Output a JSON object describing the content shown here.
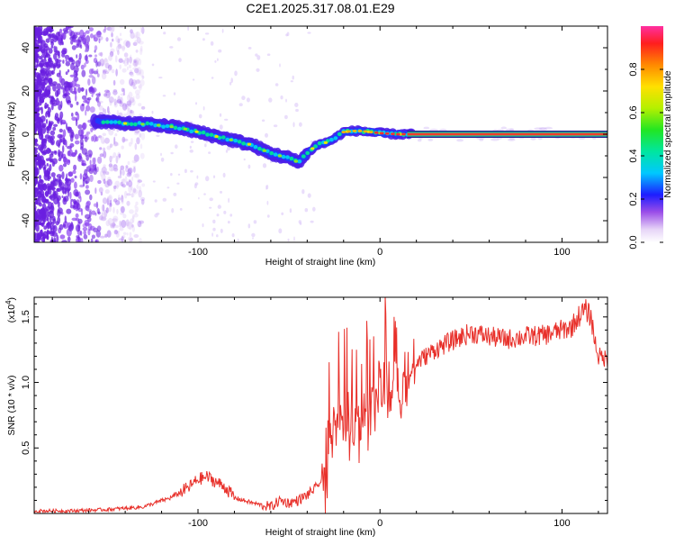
{
  "title": "C2E1.2025.317.08.01.E29",
  "chart_data": [
    {
      "type": "heatmap",
      "xlabel": "Height of straight line (km)",
      "ylabel": "Frequency (Hz)",
      "xlim": [
        -190,
        125
      ],
      "ylim": [
        -50,
        50
      ],
      "xticks": [
        -100,
        0,
        100
      ],
      "yticks": [
        -40,
        -20,
        0,
        20,
        40
      ],
      "ridge": {
        "x": [
          -155,
          -140,
          -125,
          -110,
          -100,
          -90,
          -80,
          -70,
          -60,
          -50,
          -45,
          -40,
          -35,
          -30,
          -25,
          -20,
          -15,
          -10,
          -5,
          0,
          10,
          20,
          125
        ],
        "y": [
          6,
          5,
          4.5,
          3,
          1,
          -1,
          -3,
          -5,
          -9,
          -11,
          -13,
          -9,
          -5,
          -4,
          -2,
          1,
          1.5,
          1.5,
          1,
          0.5,
          0,
          0,
          0
        ]
      },
      "colorbar": {
        "label": "Normalized spectral amplitude",
        "range": [
          0.0,
          1.0
        ],
        "ticks": [
          0.0,
          0.2,
          0.4,
          0.6,
          0.8
        ]
      }
    },
    {
      "type": "line",
      "xlabel": "Height of straight line (km)",
      "ylabel": "SNR (10 * v/v)",
      "scale_label": "(x10",
      "scale_exp": "4",
      "scale_close": ")",
      "xlim": [
        -190,
        125
      ],
      "ylim": [
        0,
        1.65
      ],
      "xticks": [
        -100,
        0,
        100
      ],
      "yticks": [
        0.5,
        1.0,
        1.5
      ],
      "series": [
        {
          "name": "SNR",
          "color": "#e8302a",
          "x": [
            -190,
            -170,
            -150,
            -130,
            -115,
            -105,
            -100,
            -95,
            -90,
            -85,
            -80,
            -70,
            -60,
            -55,
            -50,
            -45,
            -40,
            -35,
            -30,
            -28,
            -26,
            -24,
            -22,
            -20,
            -15,
            -10,
            -5,
            0,
            5,
            10,
            15,
            20,
            30,
            40,
            50,
            60,
            70,
            80,
            90,
            100,
            105,
            108,
            110,
            113,
            116,
            118,
            120,
            125
          ],
          "y": [
            0.02,
            0.02,
            0.03,
            0.05,
            0.12,
            0.2,
            0.26,
            0.28,
            0.24,
            0.2,
            0.12,
            0.08,
            0.05,
            0.1,
            0.08,
            0.1,
            0.14,
            0.2,
            0.28,
            0.55,
            0.7,
            0.75,
            0.8,
            0.72,
            0.6,
            0.7,
            0.8,
            0.95,
            0.92,
            0.95,
            1.05,
            1.15,
            1.25,
            1.32,
            1.38,
            1.35,
            1.33,
            1.35,
            1.36,
            1.4,
            1.42,
            1.48,
            1.52,
            1.55,
            1.5,
            1.32,
            1.2,
            1.18
          ]
        }
      ]
    }
  ]
}
